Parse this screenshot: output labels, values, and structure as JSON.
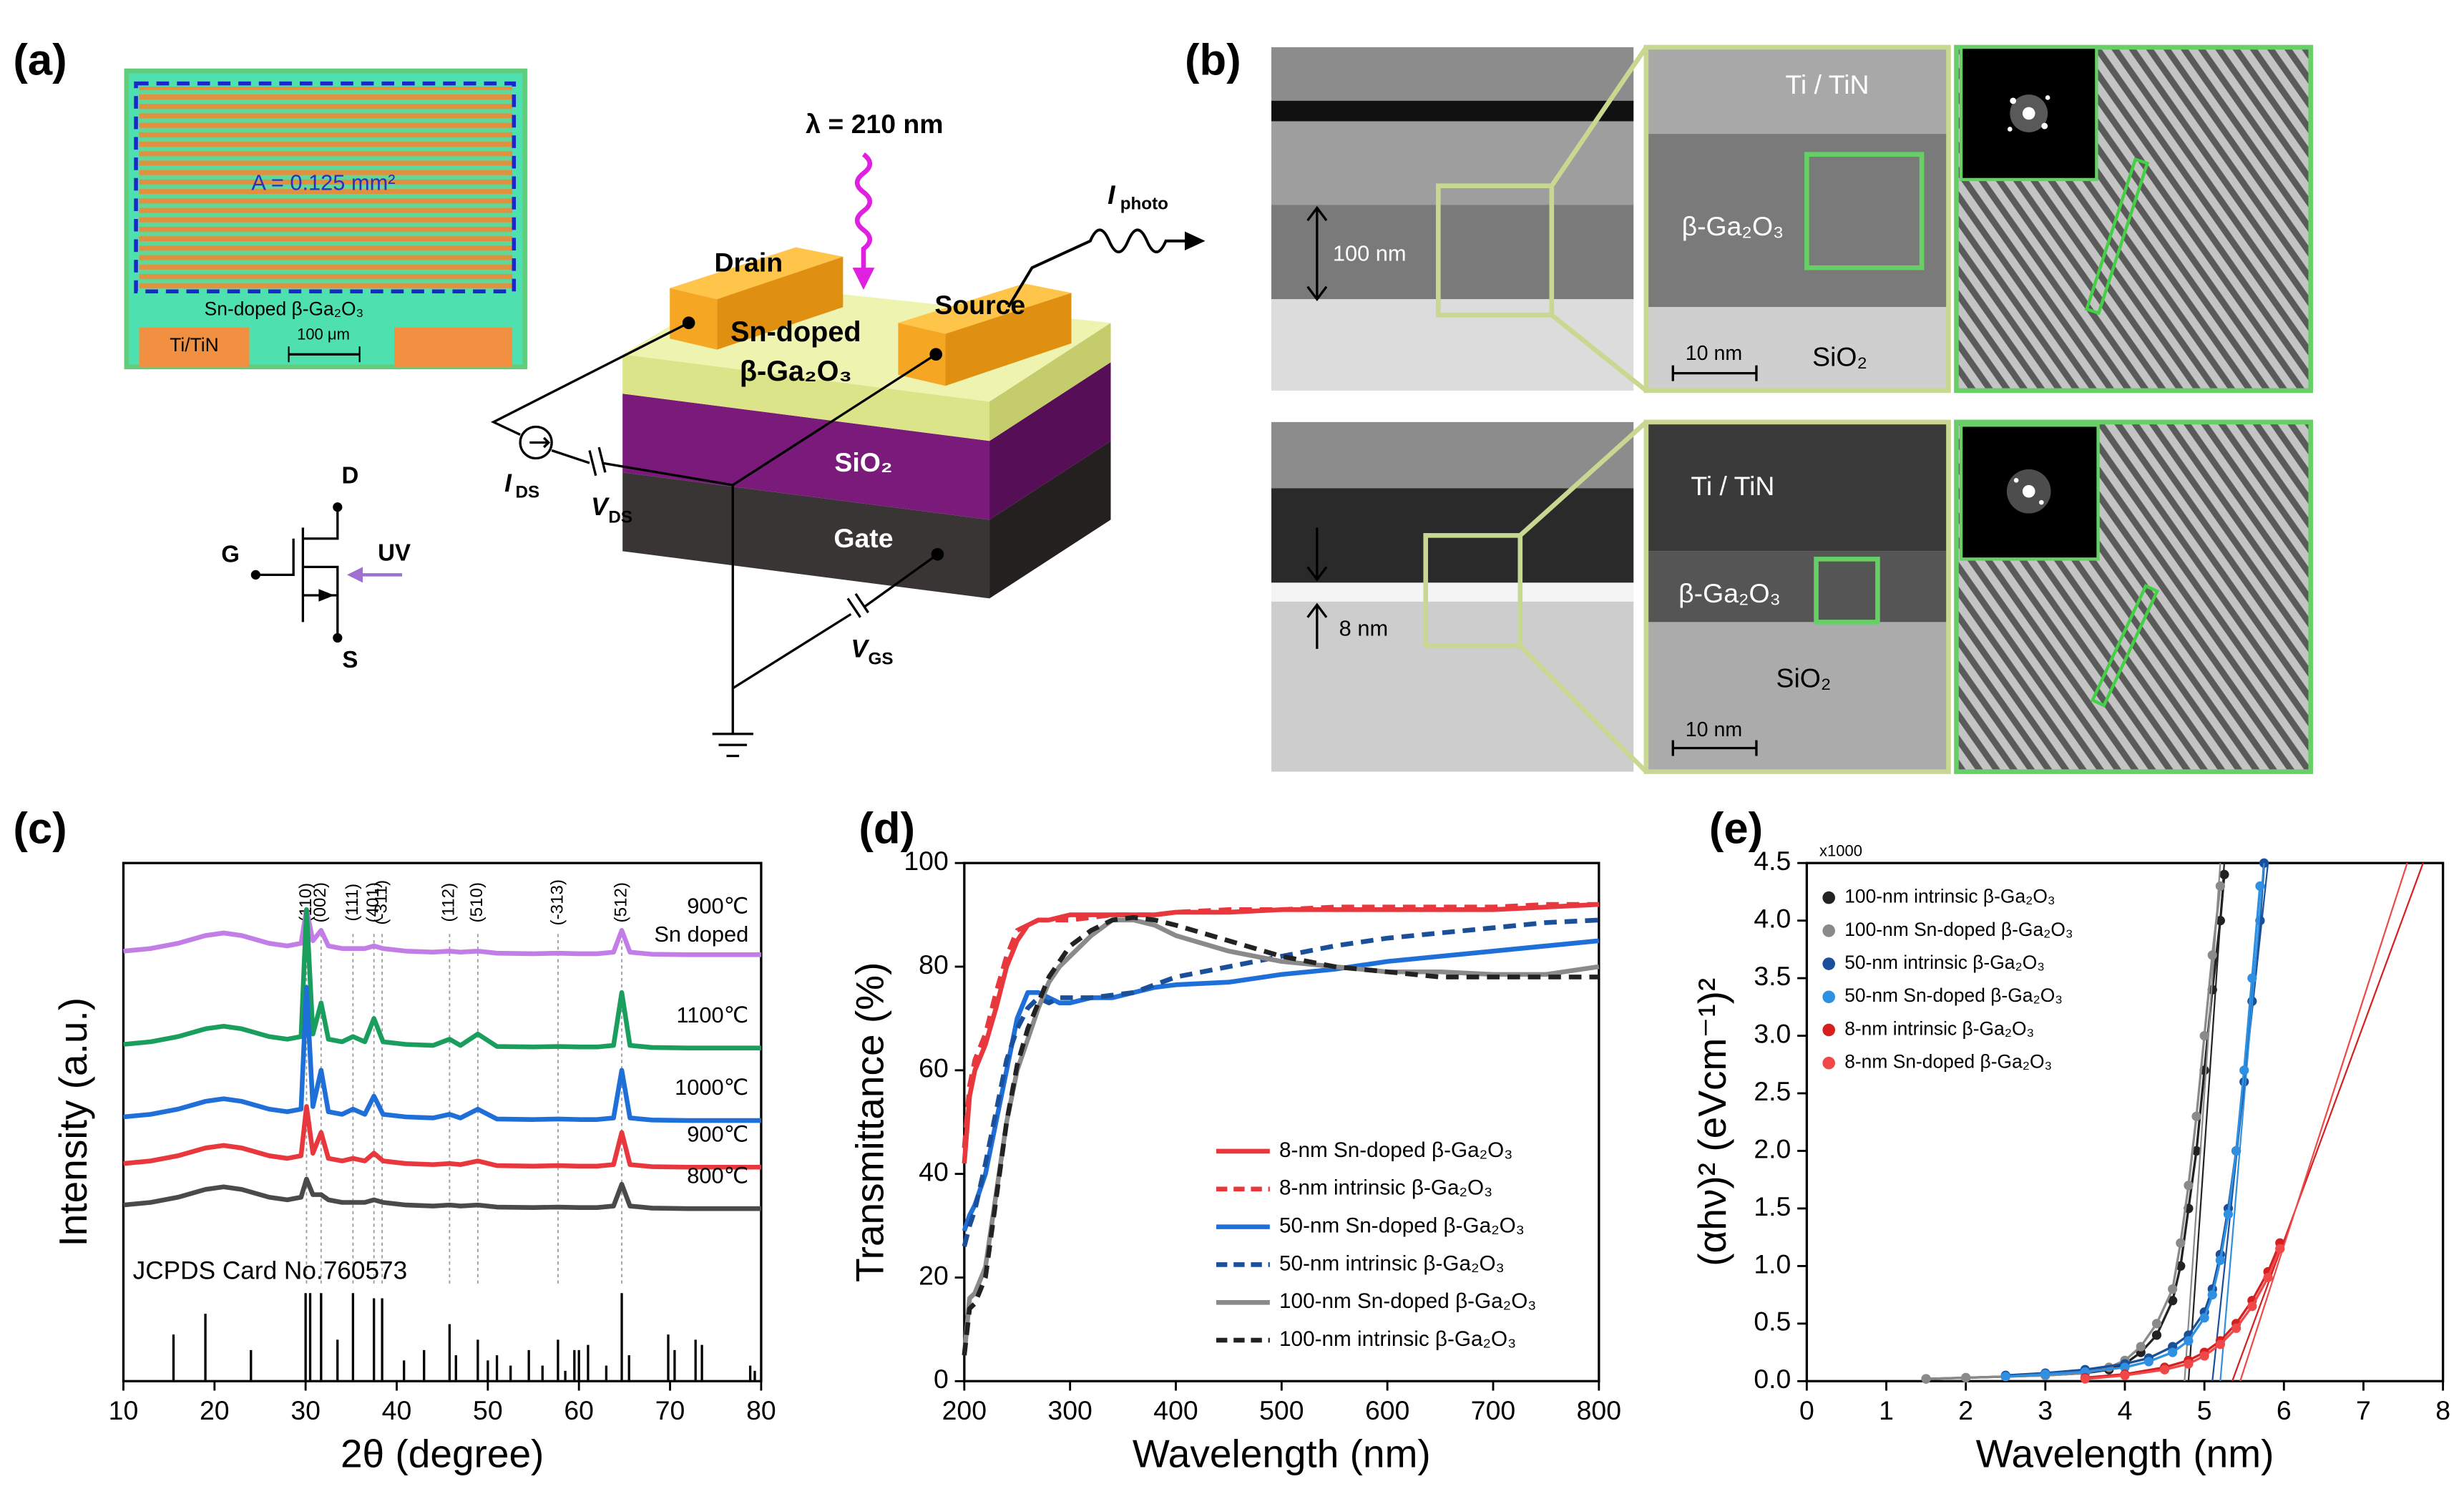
{
  "panel_labels": [
    "(a)",
    "(b)",
    "(c)",
    "(d)",
    "(e)"
  ],
  "panel_a": {
    "area": "A = 0.125 mm²",
    "film": "Sn-doped β-Ga₂O₃",
    "electrode": "Ti/TiN",
    "scale": "100 μm",
    "wavelength": "λ = 210 nm",
    "drain": "Drain",
    "source": "Source",
    "channel_1": "Sn-doped",
    "channel_2": "β-Ga₂O₃",
    "oxide": "SiO₂",
    "gate": "Gate",
    "i_photo": {
      "main": "I",
      "sub": "photo"
    },
    "i_ds": {
      "main": "I",
      "sub": "DS"
    },
    "v_ds": {
      "main": "V",
      "sub": "DS"
    },
    "v_gs": {
      "main": "V",
      "sub": "GS"
    },
    "symbol": {
      "d": "D",
      "g": "G",
      "s": "S",
      "uv": "UV"
    }
  },
  "panel_b": {
    "row_1": {
      "thickness": "100 nm",
      "top": "Ti / TiN",
      "film": "β-Ga₂O₃",
      "bottom": "SiO₂",
      "scale": "10 nm"
    },
    "row_2": {
      "thickness": "8 nm",
      "top": "Ti / TiN",
      "film": "β-Ga₂O₃",
      "bottom": "SiO₂",
      "scale": "10 nm"
    }
  },
  "chart_data": [
    {
      "type": "line",
      "xlabel": "2θ (degree)",
      "ylabel": "Intensity (a.u.)",
      "xlim": [
        10,
        80
      ],
      "xticks": [
        10,
        20,
        30,
        40,
        50,
        60,
        70,
        80
      ],
      "ylim": [
        0,
        100
      ],
      "x": [
        10,
        13,
        16,
        19,
        21,
        23,
        26,
        28,
        29.5,
        30.1,
        30.8,
        31.7,
        32.5,
        34,
        35.2,
        36.5,
        37.5,
        38.5,
        41,
        44,
        45.8,
        47,
        48.9,
        51,
        55,
        57.7,
        60,
        62,
        63.8,
        64.7,
        65.6,
        68,
        72,
        76,
        80
      ],
      "series": [
        {
          "name": "900℃",
          "sublabel": "Sn doped",
          "color": "#c27ee6",
          "values": [
            83,
            83.5,
            84.5,
            86,
            86.5,
            86,
            84.5,
            84,
            84.5,
            91,
            85,
            87,
            84,
            83.5,
            83.5,
            83.5,
            84,
            83.5,
            83,
            82.8,
            83,
            82.8,
            83,
            82.6,
            82.5,
            82.6,
            82.5,
            82.5,
            82.8,
            87,
            82.8,
            82.4,
            82.3,
            82.3,
            82.3
          ]
        },
        {
          "name": "1100℃",
          "color": "#1a9e5e",
          "values": [
            65,
            65.5,
            66.5,
            68,
            68.5,
            68,
            66.5,
            66,
            66.5,
            91,
            67,
            73,
            66,
            65.5,
            66.5,
            65.5,
            70,
            65.5,
            65,
            64.8,
            66,
            64.8,
            67,
            64.6,
            64.5,
            64.6,
            64.5,
            64.5,
            64.8,
            75,
            64.8,
            64.4,
            64.3,
            64.3,
            64.3
          ]
        },
        {
          "name": "1000℃",
          "color": "#1f6fd8",
          "values": [
            51,
            51.5,
            52.5,
            54,
            54.5,
            54,
            52.5,
            52,
            52.5,
            76,
            53,
            60,
            52,
            51.5,
            52.5,
            51.5,
            55,
            51.5,
            51,
            50.8,
            51.5,
            50.8,
            52.5,
            50.6,
            50.5,
            50.6,
            50.5,
            50.5,
            50.8,
            60,
            50.8,
            50.4,
            50.3,
            50.3,
            50.3
          ]
        },
        {
          "name": "900℃",
          "color": "#e8383d",
          "values": [
            42,
            42.5,
            43.5,
            45,
            45.5,
            45,
            43.5,
            43,
            43.5,
            53,
            44,
            48,
            43,
            42.5,
            43,
            42.5,
            44,
            42.5,
            42,
            41.8,
            42,
            41.8,
            42.5,
            41.6,
            41.5,
            41.6,
            41.5,
            41.5,
            41.8,
            48,
            41.8,
            41.4,
            41.3,
            41.3,
            41.3
          ]
        },
        {
          "name": "800℃",
          "color": "#4a4a4a",
          "values": [
            34,
            34.5,
            35.5,
            37,
            37.5,
            37,
            35.5,
            35,
            35.5,
            39,
            36,
            36,
            35,
            34.5,
            34.5,
            34.5,
            35,
            34.5,
            34,
            33.8,
            34,
            33.8,
            34,
            33.6,
            33.5,
            33.6,
            33.5,
            33.5,
            33.8,
            38,
            33.8,
            33.4,
            33.3,
            33.3,
            33.3
          ]
        }
      ],
      "peak_labels": [
        {
          "x": 30.1,
          "label": "(110)"
        },
        {
          "x": 31.7,
          "label": "(002)"
        },
        {
          "x": 35.2,
          "label": "(111)"
        },
        {
          "x": 37.5,
          "label": "(401)"
        },
        {
          "x": 38.4,
          "label": "(-311)"
        },
        {
          "x": 45.8,
          "label": "(112)"
        },
        {
          "x": 48.9,
          "label": "(510)"
        },
        {
          "x": 57.7,
          "label": "(-313)"
        },
        {
          "x": 64.7,
          "label": "(512)"
        }
      ],
      "reference": {
        "label": "JCPDS Card No.760573",
        "color": "#000000",
        "x": [
          15.5,
          19,
          24,
          30,
          30.5,
          31.7,
          33.5,
          35.2,
          37.5,
          38.4,
          40.8,
          43,
          45.8,
          46.5,
          48.9,
          50,
          51,
          52.5,
          54.5,
          56,
          57.7,
          58.5,
          59.5,
          60,
          61,
          63,
          64.7,
          65.5,
          69.8,
          70.5,
          72.8,
          73.5,
          78.8,
          79.3
        ],
        "values": [
          9,
          13,
          6,
          17,
          17,
          17,
          8,
          17,
          16,
          16,
          4,
          6,
          11,
          5,
          8,
          4,
          5,
          3,
          6,
          3,
          8,
          2,
          6,
          6,
          7,
          3,
          17,
          5,
          9,
          6,
          8,
          7,
          3,
          2
        ]
      }
    },
    {
      "type": "line",
      "xlabel": "Wavelength (nm)",
      "ylabel": "Transmittance (%)",
      "legend": "lower right",
      "xlim": [
        200,
        800
      ],
      "xticks": [
        200,
        300,
        400,
        500,
        600,
        700,
        800
      ],
      "ylim": [
        0,
        100
      ],
      "yticks": [
        0,
        20,
        40,
        60,
        80,
        100
      ],
      "x": [
        200,
        205,
        210,
        220,
        230,
        240,
        250,
        260,
        270,
        280,
        290,
        300,
        320,
        340,
        360,
        380,
        400,
        450,
        500,
        550,
        600,
        650,
        700,
        750,
        800
      ],
      "series": [
        {
          "name": "8-nm Sn-doped β-Ga₂O₃",
          "color": "#e8383d",
          "dash": false,
          "values": [
            42,
            55,
            60,
            65,
            72,
            80,
            85,
            88,
            89,
            89,
            89.5,
            90,
            90,
            90,
            90,
            90,
            90.5,
            90.5,
            91,
            91,
            91,
            91,
            91,
            91.5,
            92
          ]
        },
        {
          "name": "8-nm intrinsic β-Ga₂O₃",
          "color": "#e8383d",
          "dash": true,
          "values": [
            45,
            57,
            62,
            67,
            75,
            82,
            87,
            88,
            89,
            89,
            89,
            89,
            89.5,
            90,
            90,
            90,
            90.5,
            91,
            91,
            91.5,
            91.5,
            91.5,
            91.5,
            92,
            92
          ]
        },
        {
          "name": "50-nm Sn-doped β-Ga₂O₃",
          "color": "#1f6fd8",
          "dash": false,
          "values": [
            29,
            32,
            34,
            40,
            50,
            60,
            70,
            75,
            75,
            74,
            73,
            73,
            74,
            74,
            75,
            76,
            76.5,
            77,
            78.5,
            79.5,
            81,
            82,
            83,
            84,
            85
          ]
        },
        {
          "name": "50-nm intrinsic β-Ga₂O₃",
          "color": "#1a4f9a",
          "dash": true,
          "values": [
            26,
            30,
            33,
            42,
            52,
            62,
            68,
            72,
            74,
            73,
            74,
            74,
            74,
            74.5,
            75,
            76.5,
            78,
            80,
            82,
            84,
            85.5,
            86.5,
            87.5,
            88.5,
            89
          ]
        },
        {
          "name": "100-nm Sn-doped β-Ga₂O₃",
          "color": "#8a8a8a",
          "dash": false,
          "values": [
            5,
            16,
            17,
            22,
            36,
            50,
            60,
            66,
            72,
            77,
            80,
            82,
            86,
            89,
            89,
            88,
            86,
            83,
            81,
            80,
            79,
            79,
            78.5,
            78.5,
            80
          ]
        },
        {
          "name": "100-nm intrinsic β-Ga₂O₃",
          "color": "#222222",
          "dash": true,
          "values": [
            5,
            14,
            15,
            20,
            35,
            50,
            61,
            68,
            73,
            78,
            81,
            84,
            87,
            89,
            89.5,
            89,
            88,
            85,
            82,
            80,
            79,
            78,
            78,
            78,
            78
          ]
        }
      ]
    },
    {
      "type": "scatter",
      "xlabel": "Wavelength (nm)",
      "ylabel": "(αhν)² (eVcm⁻¹)²",
      "multiplier": "x1000",
      "legend": "upper left",
      "xlim": [
        0,
        8
      ],
      "xticks": [
        0,
        1,
        2,
        3,
        4,
        5,
        6,
        7,
        8
      ],
      "ylim": [
        0,
        4.5
      ],
      "yticks": [
        {
          "value": 0,
          "label": "0.0"
        },
        0.5,
        {
          "value": 1,
          "label": "1.0"
        },
        1.5,
        {
          "value": 2,
          "label": "2.0"
        },
        2.5,
        {
          "value": 3,
          "label": "3.0"
        },
        3.5,
        {
          "value": 4,
          "label": "4.0"
        },
        4.5
      ],
      "series": [
        {
          "name": "100-nm intrinsic β-Ga₂O₃",
          "color": "#222222",
          "x": [
            1.5,
            2,
            2.5,
            3,
            3.5,
            3.8,
            4,
            4.2,
            4.4,
            4.6,
            4.7,
            4.8,
            4.9,
            5.0,
            5.1,
            5.2,
            5.25
          ],
          "values": [
            0.02,
            0.03,
            0.04,
            0.05,
            0.07,
            0.1,
            0.15,
            0.25,
            0.4,
            0.7,
            1.0,
            1.5,
            2.0,
            2.7,
            3.4,
            4.0,
            4.4
          ],
          "fit": {
            "x": [
              4.8,
              5.25
            ],
            "values": [
              0,
              4.5
            ]
          }
        },
        {
          "name": "100-nm Sn-doped β-Ga₂O₃",
          "color": "#8a8a8a",
          "x": [
            1.5,
            2,
            2.5,
            3,
            3.5,
            3.8,
            4,
            4.2,
            4.4,
            4.6,
            4.7,
            4.8,
            4.9,
            5.0,
            5.1,
            5.2
          ],
          "values": [
            0.02,
            0.03,
            0.04,
            0.05,
            0.07,
            0.12,
            0.18,
            0.3,
            0.5,
            0.8,
            1.2,
            1.7,
            2.3,
            3.0,
            3.7,
            4.3
          ],
          "fit": {
            "x": [
              4.75,
              5.2
            ],
            "values": [
              0,
              4.5
            ]
          }
        },
        {
          "name": "50-nm intrinsic β-Ga₂O₃",
          "color": "#1a4f9a",
          "x": [
            2.5,
            3,
            3.5,
            4,
            4.3,
            4.6,
            4.8,
            5.0,
            5.1,
            5.2,
            5.3,
            5.4,
            5.5,
            5.6,
            5.7,
            5.75
          ],
          "values": [
            0.05,
            0.07,
            0.1,
            0.15,
            0.2,
            0.3,
            0.4,
            0.6,
            0.8,
            1.1,
            1.5,
            2.0,
            2.6,
            3.3,
            4.0,
            4.5
          ],
          "fit": {
            "x": [
              5.1,
              5.8
            ],
            "values": [
              0,
              4.5
            ]
          }
        },
        {
          "name": "50-nm Sn-doped β-Ga₂O₃",
          "color": "#2f8fe0",
          "x": [
            2.5,
            3,
            3.5,
            4,
            4.3,
            4.6,
            4.8,
            5.0,
            5.1,
            5.2,
            5.3,
            5.4,
            5.5,
            5.6,
            5.7
          ],
          "values": [
            0.04,
            0.06,
            0.08,
            0.12,
            0.17,
            0.25,
            0.35,
            0.55,
            0.75,
            1.05,
            1.45,
            2.0,
            2.7,
            3.5,
            4.3
          ],
          "fit": {
            "x": [
              5.2,
              5.75
            ],
            "values": [
              0,
              4.5
            ]
          }
        },
        {
          "name": "8-nm intrinsic β-Ga₂O₃",
          "color": "#d42020",
          "x": [
            3.5,
            4,
            4.5,
            4.8,
            5.0,
            5.2,
            5.4,
            5.6,
            5.8,
            5.95
          ],
          "values": [
            0.03,
            0.06,
            0.12,
            0.18,
            0.25,
            0.35,
            0.5,
            0.7,
            0.95,
            1.2
          ],
          "fit": {
            "x": [
              5.35,
              7.75
            ],
            "values": [
              0,
              4.5
            ]
          }
        },
        {
          "name": "8-nm Sn-doped β-Ga₂O₃",
          "color": "#f04848",
          "x": [
            3.5,
            4,
            4.5,
            4.8,
            5.0,
            5.2,
            5.4,
            5.6,
            5.8,
            5.95
          ],
          "values": [
            0.02,
            0.05,
            0.1,
            0.15,
            0.22,
            0.32,
            0.46,
            0.65,
            0.9,
            1.15
          ],
          "fit": {
            "x": [
              5.45,
              7.55
            ],
            "values": [
              0,
              4.5
            ]
          }
        }
      ]
    }
  ]
}
